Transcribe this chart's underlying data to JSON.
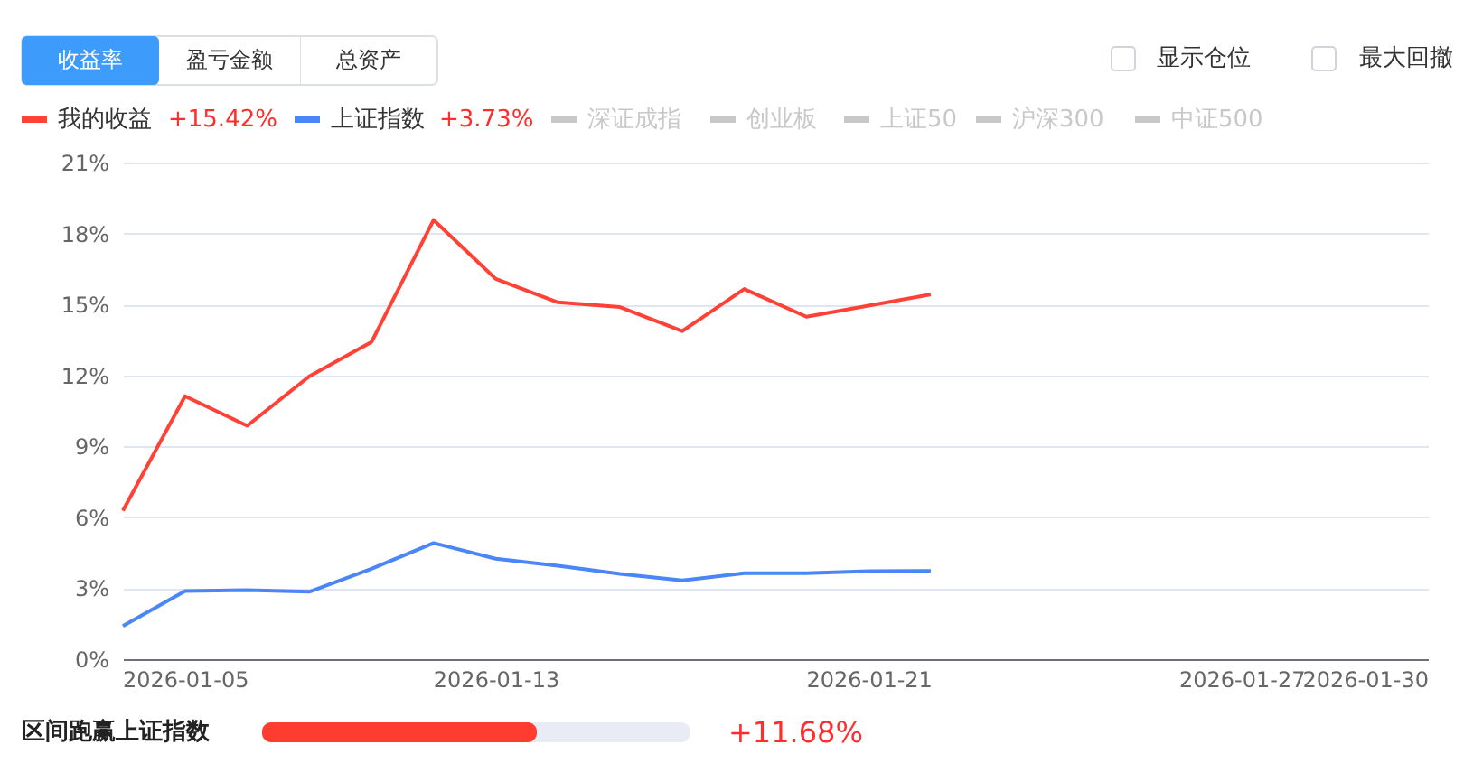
{
  "chart_data": {
    "type": "line",
    "categories": [
      null,
      "2026-01-05",
      null,
      null,
      null,
      null,
      "2026-01-13",
      null,
      null,
      null,
      null,
      null,
      "2026-01-21",
      null,
      null,
      null,
      null,
      null,
      "2026-01-27",
      null,
      null,
      "2026-01-30"
    ],
    "series": [
      {
        "name": "我的收益",
        "color": "#ff4136",
        "values": [
          6.28,
          11.12,
          9.87,
          11.96,
          13.41,
          18.57,
          16.08,
          15.09,
          14.89,
          13.87,
          15.65,
          14.48,
          14.95,
          15.42,
          null,
          null,
          null,
          null,
          null,
          null,
          null,
          null
        ]
      },
      {
        "name": "上证指数",
        "color": "#4a86f7",
        "values": [
          1.4,
          2.88,
          2.92,
          2.85,
          3.82,
          4.91,
          4.25,
          3.95,
          3.61,
          3.33,
          3.64,
          3.64,
          3.72,
          3.73,
          null,
          null,
          null,
          null,
          null,
          null,
          null,
          null
        ]
      }
    ],
    "ylim": [
      0,
      21
    ],
    "yticks": [
      {
        "value": 0,
        "label": "0%"
      },
      {
        "value": 3,
        "label": "3%"
      },
      {
        "value": 6,
        "label": "6%"
      },
      {
        "value": 9,
        "label": "9%"
      },
      {
        "value": 12,
        "label": "12%"
      },
      {
        "value": 15,
        "label": "15%"
      },
      {
        "value": 18,
        "label": "18%"
      },
      {
        "value": 21,
        "label": "21%"
      }
    ],
    "grid": "y",
    "legend": "top left",
    "marker": "none",
    "line_style": "solid",
    "annotations": [
      "收益率",
      "盈亏金额",
      "总资产",
      "显示仓位",
      "最大回撤",
      "+15.42%",
      "+3.73%",
      "深证成指",
      "创业板",
      "上证50",
      "沪深300",
      "中证500",
      "区间跑赢上证指数",
      "+11.68%"
    ]
  }
}
